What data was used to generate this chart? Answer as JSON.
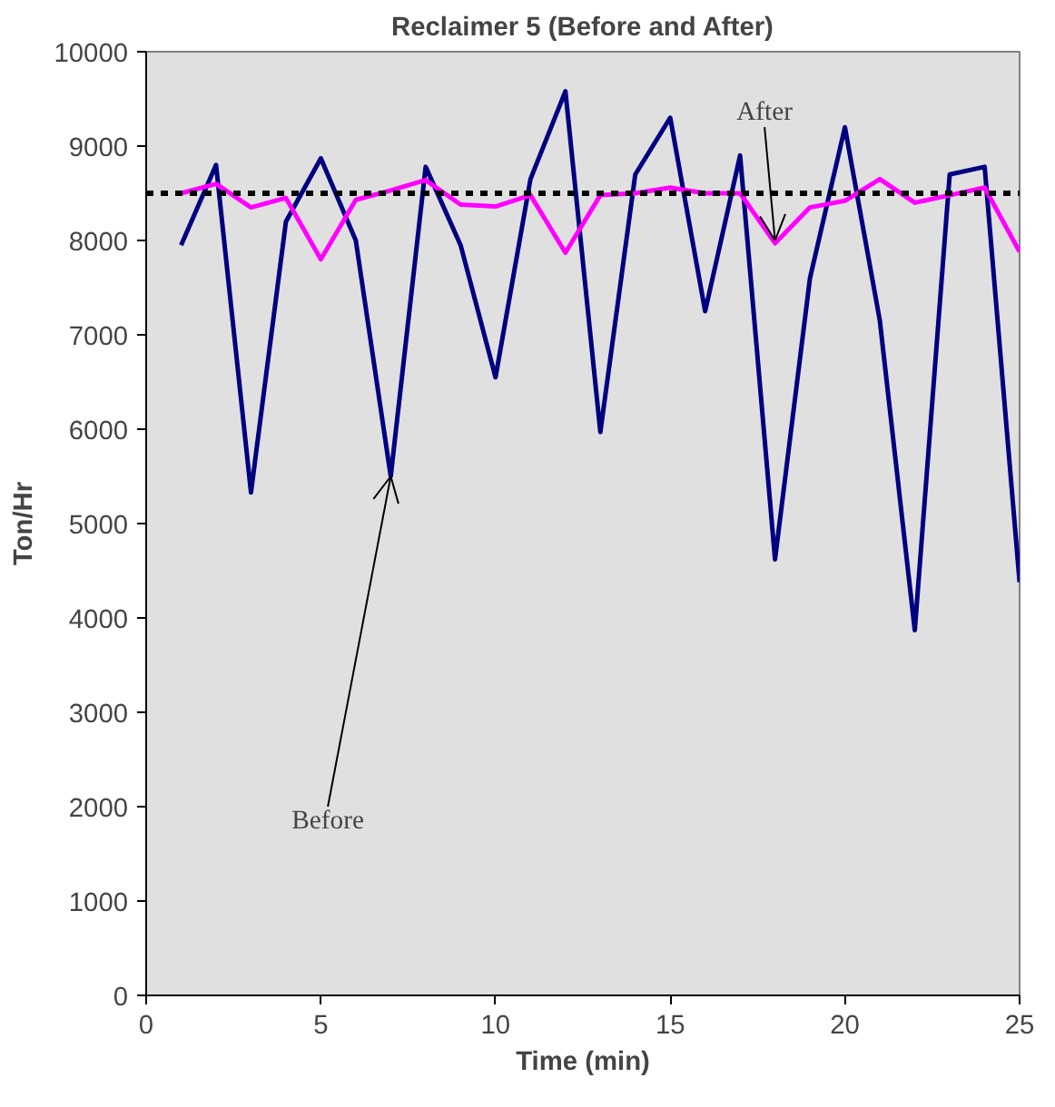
{
  "chart_data": {
    "type": "line",
    "title": "Reclaimer 5 (Before and After)",
    "xlabel": "Time (min)",
    "ylabel": "Ton/Hr",
    "x": [
      1,
      2,
      3,
      4,
      5,
      6,
      7,
      8,
      9,
      10,
      11,
      12,
      13,
      14,
      15,
      16,
      17,
      18,
      19,
      20,
      21,
      22,
      23,
      24,
      25
    ],
    "series": [
      {
        "color": "#000080",
        "values": [
          7950,
          8800,
          5330,
          8200,
          8870,
          8000,
          5500,
          8780,
          7950,
          6550,
          8650,
          9580,
          5970,
          8700,
          9300,
          7250,
          8900,
          4620,
          7600,
          9200,
          7150,
          3870,
          8700,
          8780,
          4380
        ]
      },
      {
        "color": "#ff00ff",
        "values": [
          8500,
          8600,
          8350,
          8450,
          7800,
          8430,
          8530,
          8640,
          8380,
          8360,
          8480,
          7870,
          8480,
          8500,
          8560,
          8500,
          8500,
          7970,
          8350,
          8420,
          8650,
          8400,
          8480,
          8560,
          7880
        ]
      }
    ],
    "xlim": [
      0,
      25
    ],
    "xticks": [
      0,
      5,
      10,
      15,
      20,
      25
    ],
    "ylim": [
      0,
      10000
    ],
    "yticks": [
      0,
      1000,
      2000,
      3000,
      4000,
      5000,
      6000,
      7000,
      8000,
      9000,
      10000
    ],
    "ref_lines": [
      {
        "axis": "y",
        "value": 8500,
        "color": "#000000",
        "line_style": "dotted"
      }
    ],
    "annotations": [
      {
        "text": "Before",
        "x": 7,
        "y": 5500
      },
      {
        "text": "After",
        "x": 18,
        "y": 8000
      }
    ],
    "line_style": "solid"
  }
}
